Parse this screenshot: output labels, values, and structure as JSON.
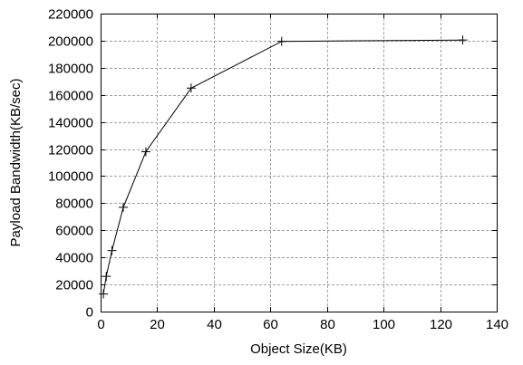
{
  "chart_data": {
    "type": "line",
    "title": "",
    "xlabel": "Object Size(KB)",
    "ylabel": "Payload Bandwidth(KB/sec)",
    "xlim": [
      0,
      140
    ],
    "ylim": [
      0,
      220000
    ],
    "x_ticks": [
      0,
      20,
      40,
      60,
      80,
      100,
      120,
      140
    ],
    "y_ticks": [
      0,
      20000,
      40000,
      60000,
      80000,
      100000,
      120000,
      140000,
      160000,
      180000,
      200000,
      220000
    ],
    "grid": true,
    "marker": "plus",
    "series": [
      {
        "x": [
          1,
          2,
          4,
          8,
          16,
          32,
          64,
          128
        ],
        "y": [
          13000,
          26000,
          45000,
          77000,
          118000,
          165000,
          199500,
          200500
        ]
      }
    ]
  }
}
